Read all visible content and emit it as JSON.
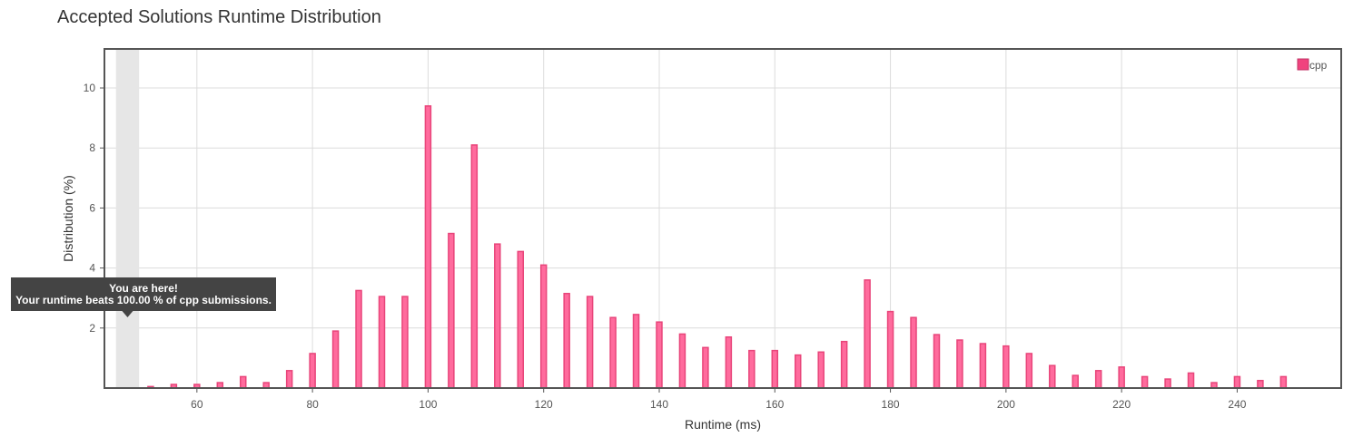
{
  "chart_data": {
    "type": "bar",
    "title": "Accepted Solutions Runtime Distribution",
    "xlabel": "Runtime (ms)",
    "ylabel": "Distribution (%)",
    "xlim": [
      44,
      258
    ],
    "ylim": [
      0,
      11.3
    ],
    "x_ticks": [
      60,
      80,
      100,
      120,
      140,
      160,
      180,
      200,
      220,
      240
    ],
    "y_ticks": [
      2,
      4,
      6,
      8,
      10
    ],
    "grid": true,
    "legend_position": "top-right",
    "bar_color": "#ff6b9d",
    "bar_border_color": "#e8457a",
    "series": [
      {
        "name": "cpp",
        "x": [
          52,
          56,
          60,
          64,
          68,
          72,
          76,
          80,
          84,
          88,
          92,
          96,
          100,
          104,
          108,
          112,
          116,
          120,
          124,
          128,
          132,
          136,
          140,
          144,
          148,
          152,
          156,
          160,
          164,
          168,
          172,
          176,
          180,
          184,
          188,
          192,
          196,
          200,
          204,
          208,
          212,
          216,
          220,
          224,
          228,
          232,
          236,
          240,
          244,
          248
        ],
        "values": [
          0.05,
          0.12,
          0.12,
          0.18,
          0.38,
          0.18,
          0.58,
          1.15,
          1.9,
          3.25,
          3.05,
          3.05,
          9.4,
          5.15,
          8.1,
          4.8,
          4.55,
          4.1,
          3.15,
          3.05,
          2.35,
          2.45,
          2.2,
          1.8,
          1.35,
          1.7,
          1.25,
          1.25,
          1.1,
          1.2,
          1.55,
          3.6,
          2.55,
          2.35,
          1.78,
          1.6,
          1.48,
          1.4,
          1.15,
          0.75,
          0.42,
          0.58,
          0.7,
          0.38,
          0.3,
          0.5,
          0.18,
          0.38,
          0.25,
          0.38
        ]
      }
    ],
    "highlight": {
      "x_range": [
        46,
        50
      ],
      "color": "#e6e6e6"
    },
    "tooltip": {
      "line1": "You are here!",
      "line2": "Your runtime beats 100.00 % of cpp submissions."
    }
  }
}
